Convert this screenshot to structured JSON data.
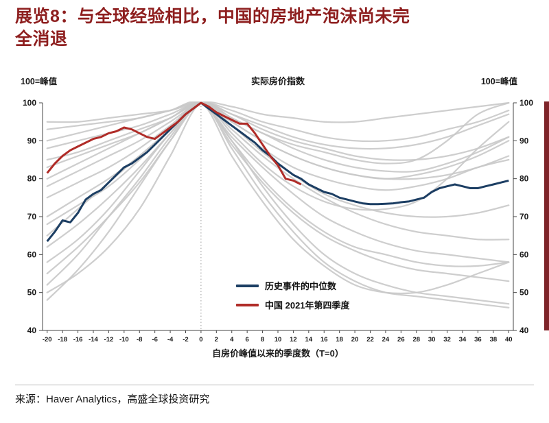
{
  "page": {
    "title_line1": "展览8：与全球经验相比，中国的房地产泡沫尚未完",
    "title_line2": "全消退",
    "source": "来源：Haver Analytics，高盛全球投资研究",
    "accent_color": "#8e1f1f"
  },
  "chart_data": {
    "type": "line",
    "title": "实际房价指数",
    "ylabel_left": "100=峰值",
    "ylabel_right": "100=峰值",
    "xlabel": "自房价峰值以来的季度数（T=0）",
    "xlim": [
      -20.6,
      40.6
    ],
    "ylim": [
      40,
      100
    ],
    "x_ticks": [
      -20,
      -18,
      -16,
      -14,
      -12,
      -10,
      -8,
      -6,
      -4,
      -2,
      0,
      2,
      4,
      6,
      8,
      10,
      12,
      14,
      16,
      18,
      20,
      22,
      24,
      26,
      28,
      30,
      32,
      34,
      36,
      38,
      40
    ],
    "y_ticks": [
      40,
      50,
      60,
      70,
      80,
      90,
      100
    ],
    "grid": false,
    "peak_vline_x": 0,
    "legend_position": "inside-bottom-center",
    "series": [
      {
        "name": "历史事件的中位数",
        "color": "#1c3e63",
        "width": 3,
        "x_start": -20,
        "x_step": 1,
        "values": [
          63.5,
          66,
          69,
          68.5,
          71,
          74.5,
          76,
          77,
          79,
          81,
          83,
          84,
          85.5,
          87,
          89,
          91,
          93,
          95,
          97,
          98.5,
          100,
          98.5,
          97,
          95.5,
          94,
          92.5,
          91,
          89.5,
          87.5,
          86,
          84,
          82.5,
          81,
          80,
          78.5,
          77.5,
          76.5,
          76,
          75,
          74.5,
          74,
          73.5,
          73.3,
          73.3,
          73.4,
          73.5,
          73.8,
          74,
          74.5,
          75,
          76.5,
          77.5,
          78,
          78.5,
          78,
          77.5,
          77.5,
          78,
          78.5,
          79,
          79.5
        ]
      },
      {
        "name": "中国 2021年第四季度",
        "color": "#b02c28",
        "width": 3,
        "x_start": -20,
        "x_step": 1,
        "values": [
          81.5,
          84,
          86,
          87.5,
          88.5,
          89.5,
          90.5,
          91,
          92,
          92.5,
          93.5,
          93,
          92,
          91,
          90.5,
          92,
          93.5,
          95,
          97,
          98.5,
          100,
          99,
          97.5,
          96.5,
          95.5,
          94.5,
          94.5,
          92,
          89,
          86,
          83.5,
          80,
          79.5,
          78.5
        ]
      }
    ],
    "background_series": {
      "color": "#c9c9c9",
      "width": 2.25,
      "x_start": -20,
      "x_step": 4,
      "lines": [
        [
          48,
          56,
          66,
          78,
          90,
          100,
          88,
          76,
          66,
          58,
          53,
          50,
          49,
          48,
          47,
          46
        ],
        [
          58,
          64,
          72,
          82,
          92,
          100,
          92,
          84,
          78,
          74,
          72,
          72,
          74,
          80,
          88,
          95
        ],
        [
          88,
          90,
          92,
          94,
          97,
          100,
          96,
          92,
          89,
          87,
          85,
          84,
          85,
          90,
          97,
          100
        ],
        [
          93,
          94,
          95,
          96,
          98,
          100,
          94,
          88,
          83,
          80,
          78,
          77,
          78,
          80,
          83,
          85
        ],
        [
          52,
          60,
          70,
          80,
          91,
          100,
          90,
          80,
          72,
          66,
          62,
          60,
          58,
          57,
          57,
          58
        ],
        [
          62,
          68,
          75,
          83,
          92,
          100,
          95,
          90,
          86,
          83,
          81,
          80,
          81,
          83,
          86,
          90
        ],
        [
          70,
          75,
          80,
          86,
          93,
          100,
          93,
          86,
          80,
          75,
          71,
          68,
          66,
          65,
          64,
          64
        ],
        [
          75,
          79,
          83,
          88,
          94,
          100,
          97,
          94,
          91,
          89,
          88,
          88,
          89,
          91,
          94,
          97
        ],
        [
          85,
          87,
          90,
          93,
          96,
          100,
          91,
          83,
          76,
          70,
          66,
          63,
          61,
          60,
          59,
          58
        ],
        [
          55,
          62,
          70,
          79,
          90,
          100,
          96,
          92,
          88,
          85,
          83,
          82,
          82,
          84,
          87,
          91
        ],
        [
          50,
          55,
          62,
          72,
          86,
          100,
          94,
          87,
          81,
          76,
          73,
          71,
          70,
          70,
          71,
          73
        ],
        [
          80,
          84,
          88,
          92,
          96,
          100,
          98,
          95,
          93,
          91,
          90,
          90,
          91,
          93,
          95,
          98
        ],
        [
          90,
          92,
          94,
          96,
          98,
          100,
          90,
          78,
          68,
          60,
          55,
          52,
          50,
          49,
          48,
          47
        ],
        [
          65,
          72,
          79,
          86,
          93,
          100,
          89,
          79,
          71,
          65,
          61,
          58,
          56,
          55,
          54,
          53
        ],
        [
          83,
          86,
          89,
          92,
          96,
          100,
          95,
          90,
          86,
          83,
          81,
          80,
          80,
          81,
          83,
          86
        ],
        [
          95,
          95,
          96,
          97,
          98,
          100,
          97,
          93,
          90,
          88,
          86,
          85,
          85,
          86,
          88,
          91
        ],
        [
          68,
          73,
          78,
          85,
          93,
          100,
          86,
          74,
          64,
          57,
          52,
          50,
          50,
          52,
          55,
          58
        ],
        [
          78,
          82,
          86,
          90,
          95,
          100,
          99,
          97,
          96,
          95,
          95,
          96,
          97,
          98,
          99,
          100
        ]
      ]
    }
  }
}
